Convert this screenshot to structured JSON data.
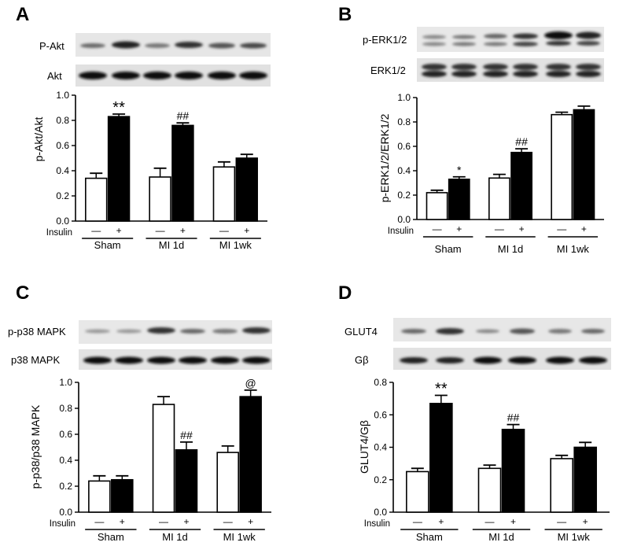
{
  "figure": {
    "treatment_label": "Insulin",
    "minus_sign": "—",
    "plus_sign": "+",
    "groups": [
      "Sham",
      "MI 1d",
      "MI 1wk"
    ]
  },
  "chart_data": [
    {
      "panel": "A",
      "type": "bar",
      "blots": [
        "P-Akt",
        "Akt"
      ],
      "ylabel": "p-Akt/Akt",
      "ylim": [
        0,
        1.0
      ],
      "yticks": [
        "0.0",
        "0.2",
        "0.4",
        "0.6",
        "0.8",
        "1.0"
      ],
      "categories": [
        "Sham",
        "MI 1d",
        "MI 1wk"
      ],
      "series": [
        {
          "treatment": "—",
          "fill": "#ffffff",
          "values": [
            0.34,
            0.35,
            0.43
          ],
          "errors": [
            0.04,
            0.07,
            0.04
          ]
        },
        {
          "treatment": "+",
          "fill": "#000000",
          "values": [
            0.83,
            0.76,
            0.5
          ],
          "errors": [
            0.02,
            0.02,
            0.03
          ]
        }
      ],
      "annotations": [
        "**",
        "##",
        ""
      ]
    },
    {
      "panel": "B",
      "type": "bar",
      "blots": [
        "p-ERK1/2",
        "ERK1/2"
      ],
      "ylabel": "p-ERK1/2/ERK1/2",
      "ylim": [
        0,
        1.0
      ],
      "yticks": [
        "0.0",
        "0.2",
        "0.4",
        "0.6",
        "0.8",
        "1.0"
      ],
      "categories": [
        "Sham",
        "MI 1d",
        "MI 1wk"
      ],
      "series": [
        {
          "treatment": "—",
          "fill": "#ffffff",
          "values": [
            0.22,
            0.34,
            0.86
          ],
          "errors": [
            0.02,
            0.03,
            0.02
          ]
        },
        {
          "treatment": "+",
          "fill": "#000000",
          "values": [
            0.33,
            0.55,
            0.9
          ],
          "errors": [
            0.02,
            0.03,
            0.03
          ]
        }
      ],
      "annotations": [
        "*",
        "##",
        ""
      ]
    },
    {
      "panel": "C",
      "type": "bar",
      "blots": [
        "p-p38 MAPK",
        "p38 MAPK"
      ],
      "ylabel": "p-p38/p38 MAPK",
      "ylim": [
        0,
        1.0
      ],
      "yticks": [
        "0.0",
        "0.2",
        "0.4",
        "0.6",
        "0.8",
        "1.0"
      ],
      "categories": [
        "Sham",
        "MI 1d",
        "MI 1wk"
      ],
      "series": [
        {
          "treatment": "—",
          "fill": "#ffffff",
          "values": [
            0.24,
            0.83,
            0.46
          ],
          "errors": [
            0.04,
            0.06,
            0.05
          ]
        },
        {
          "treatment": "+",
          "fill": "#000000",
          "values": [
            0.25,
            0.48,
            0.89
          ],
          "errors": [
            0.03,
            0.06,
            0.05
          ]
        }
      ],
      "annotations": [
        "",
        "##",
        "@"
      ]
    },
    {
      "panel": "D",
      "type": "bar",
      "blots": [
        "GLUT4",
        "Gβ"
      ],
      "ylabel": "GLUT4/Gβ",
      "ylim": [
        0,
        0.8
      ],
      "yticks": [
        "0.0",
        "0.2",
        "0.4",
        "0.6",
        "0.8"
      ],
      "categories": [
        "Sham",
        "MI 1d",
        "MI 1wk"
      ],
      "series": [
        {
          "treatment": "—",
          "fill": "#ffffff",
          "values": [
            0.25,
            0.27,
            0.33
          ],
          "errors": [
            0.02,
            0.02,
            0.02
          ]
        },
        {
          "treatment": "+",
          "fill": "#000000",
          "values": [
            0.67,
            0.51,
            0.4
          ],
          "errors": [
            0.05,
            0.03,
            0.03
          ]
        }
      ],
      "annotations": [
        "**",
        "##",
        ""
      ]
    }
  ]
}
